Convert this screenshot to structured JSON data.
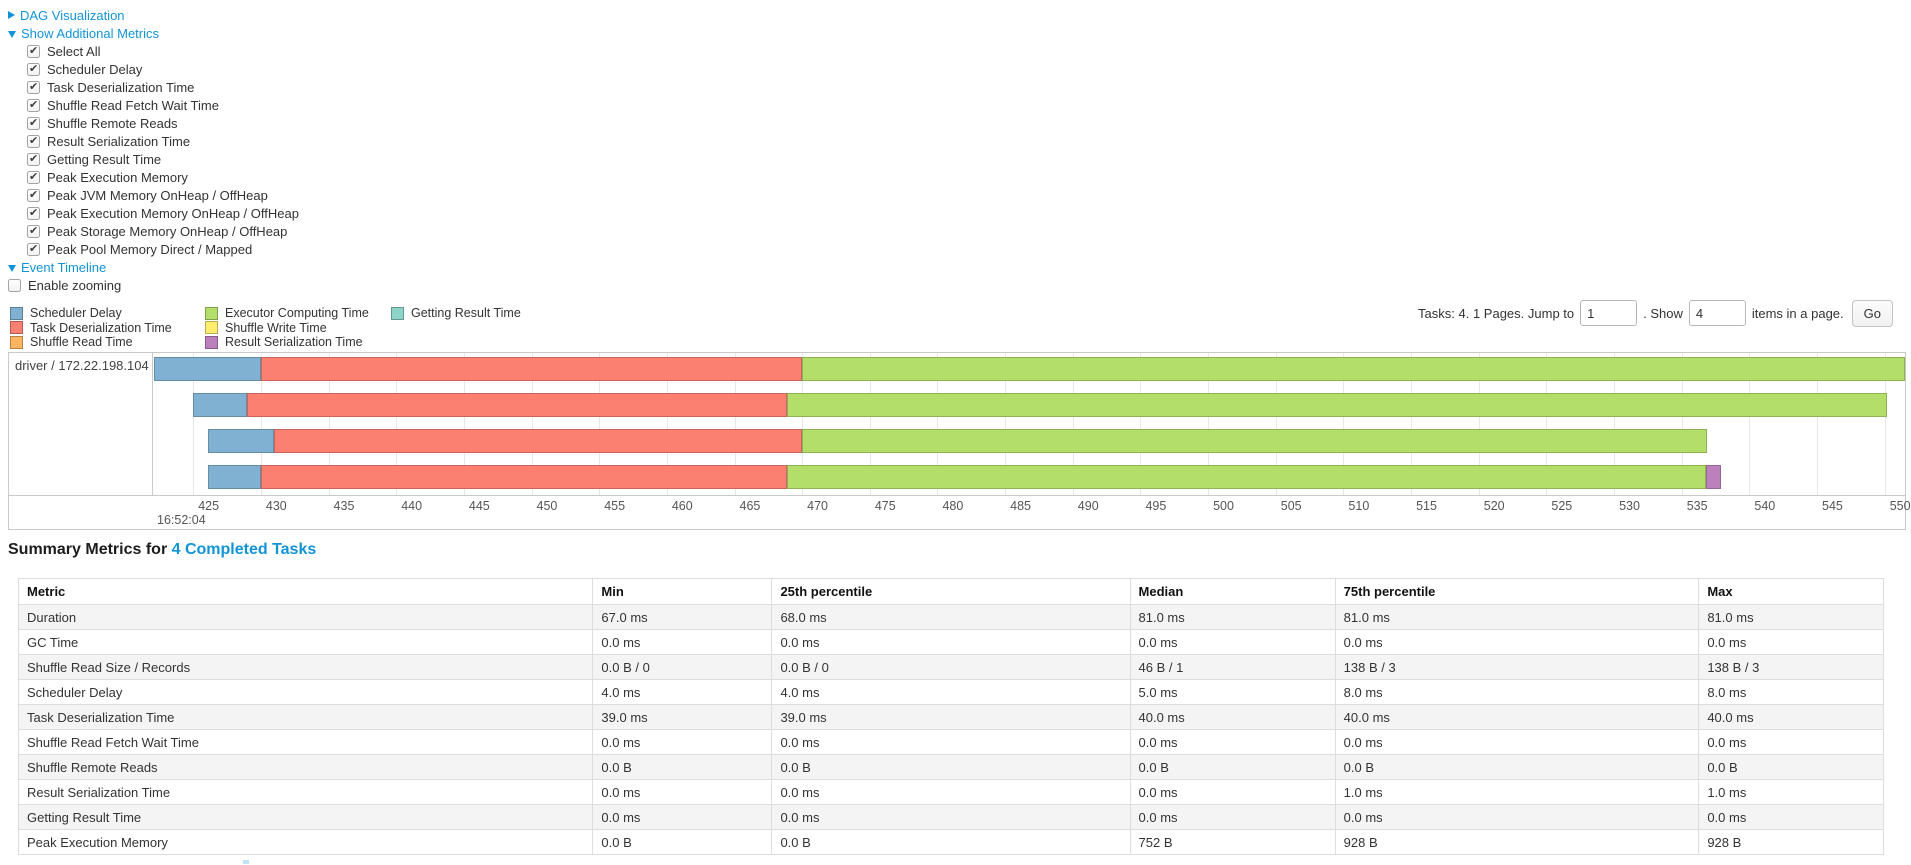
{
  "colors": {
    "link": "#1194d6",
    "segment_colors": {
      "scheduler-delay": "#80B1D3",
      "task-deserialization": "#FB8072",
      "shuffle-read": "#FDB462",
      "executor-computing": "#B3DE69",
      "shuffle-write": "#FFED6F",
      "result-serialization": "#BC80BD",
      "getting-result": "#8DD3C7"
    }
  },
  "links": {
    "dag_visualization": "DAG Visualization",
    "show_additional_metrics": "Show Additional Metrics",
    "event_timeline": "Event Timeline"
  },
  "metric_checkboxes": [
    {
      "label": "Select All",
      "checked": true
    },
    {
      "label": "Scheduler Delay",
      "checked": true
    },
    {
      "label": "Task Deserialization Time",
      "checked": true
    },
    {
      "label": "Shuffle Read Fetch Wait Time",
      "checked": true
    },
    {
      "label": "Shuffle Remote Reads",
      "checked": true
    },
    {
      "label": "Result Serialization Time",
      "checked": true
    },
    {
      "label": "Getting Result Time",
      "checked": true
    },
    {
      "label": "Peak Execution Memory",
      "checked": true
    },
    {
      "label": "Peak JVM Memory OnHeap / OffHeap",
      "checked": true
    },
    {
      "label": "Peak Execution Memory OnHeap / OffHeap",
      "checked": true
    },
    {
      "label": "Peak Storage Memory OnHeap / OffHeap",
      "checked": true
    },
    {
      "label": "Peak Pool Memory Direct / Mapped",
      "checked": true
    }
  ],
  "enable_zooming": {
    "label": "Enable zooming",
    "checked": false
  },
  "legend": {
    "columns": [
      [
        {
          "label": "Scheduler Delay",
          "color": "#80B1D3"
        },
        {
          "label": "Task Deserialization Time",
          "color": "#FB8072"
        },
        {
          "label": "Shuffle Read Time",
          "color": "#FDB462"
        }
      ],
      [
        {
          "label": "Executor Computing Time",
          "color": "#B3DE69"
        },
        {
          "label": "Shuffle Write Time",
          "color": "#FFED6F"
        },
        {
          "label": "Result Serialization Time",
          "color": "#BC80BD"
        }
      ],
      [
        {
          "label": "Getting Result Time",
          "color": "#8DD3C7"
        }
      ]
    ]
  },
  "pagination": {
    "summary_text": "Tasks: 4. 1 Pages. Jump to",
    "jump_value": "1",
    "mid_text": ". Show",
    "show_value": "4",
    "suffix_text": "items in a page.",
    "go_label": "Go"
  },
  "chart_data": {
    "type": "bar",
    "variant": "horizontal-task-event-timeline",
    "group_label": "driver / 172.22.198.104",
    "x_axis": {
      "min": 422.1,
      "max": 551.5,
      "tick_start": 425,
      "tick_end": 550,
      "tick_step": 5,
      "major_label": "16:52:04",
      "grid": true
    },
    "tasks": [
      {
        "segments": [
          {
            "name": "scheduler-delay",
            "start": 422.1,
            "end": 430.0
          },
          {
            "name": "task-deserialization",
            "start": 430.0,
            "end": 470.0
          },
          {
            "name": "executor-computing",
            "start": 470.0,
            "end": 551.6
          }
        ]
      },
      {
        "segments": [
          {
            "name": "scheduler-delay",
            "start": 425.0,
            "end": 429.0
          },
          {
            "name": "task-deserialization",
            "start": 429.0,
            "end": 468.9
          },
          {
            "name": "executor-computing",
            "start": 468.9,
            "end": 550.2
          }
        ]
      },
      {
        "segments": [
          {
            "name": "scheduler-delay",
            "start": 426.1,
            "end": 431.0
          },
          {
            "name": "task-deserialization",
            "start": 431.0,
            "end": 470.0
          },
          {
            "name": "executor-computing",
            "start": 470.0,
            "end": 536.9
          }
        ]
      },
      {
        "segments": [
          {
            "name": "scheduler-delay",
            "start": 426.1,
            "end": 430.0
          },
          {
            "name": "task-deserialization",
            "start": 430.0,
            "end": 468.9
          },
          {
            "name": "executor-computing",
            "start": 468.9,
            "end": 536.8
          },
          {
            "name": "result-serialization",
            "start": 536.8,
            "end": 537.9
          }
        ]
      }
    ]
  },
  "summary": {
    "heading_prefix": "Summary Metrics for ",
    "heading_link": "4 Completed Tasks",
    "table": {
      "headers": [
        "Metric",
        "Min",
        "25th percentile",
        "Median",
        "75th percentile",
        "Max"
      ],
      "rows": [
        [
          "Duration",
          "67.0 ms",
          "68.0 ms",
          "81.0 ms",
          "81.0 ms",
          "81.0 ms"
        ],
        [
          "GC Time",
          "0.0 ms",
          "0.0 ms",
          "0.0 ms",
          "0.0 ms",
          "0.0 ms"
        ],
        [
          "Shuffle Read Size / Records",
          "0.0 B / 0",
          "0.0 B / 0",
          "46 B / 1",
          "138 B / 3",
          "138 B / 3"
        ],
        [
          "Scheduler Delay",
          "4.0 ms",
          "4.0 ms",
          "5.0 ms",
          "8.0 ms",
          "8.0 ms"
        ],
        [
          "Task Deserialization Time",
          "39.0 ms",
          "39.0 ms",
          "40.0 ms",
          "40.0 ms",
          "40.0 ms"
        ],
        [
          "Shuffle Read Fetch Wait Time",
          "0.0 ms",
          "0.0 ms",
          "0.0 ms",
          "0.0 ms",
          "0.0 ms"
        ],
        [
          "Shuffle Remote Reads",
          "0.0 B",
          "0.0 B",
          "0.0 B",
          "0.0 B",
          "0.0 B"
        ],
        [
          "Result Serialization Time",
          "0.0 ms",
          "0.0 ms",
          "0.0 ms",
          "1.0 ms",
          "1.0 ms"
        ],
        [
          "Getting Result Time",
          "0.0 ms",
          "0.0 ms",
          "0.0 ms",
          "0.0 ms",
          "0.0 ms"
        ],
        [
          "Peak Execution Memory",
          "0.0 B",
          "0.0 B",
          "752 B",
          "928 B",
          "928 B"
        ]
      ]
    }
  }
}
